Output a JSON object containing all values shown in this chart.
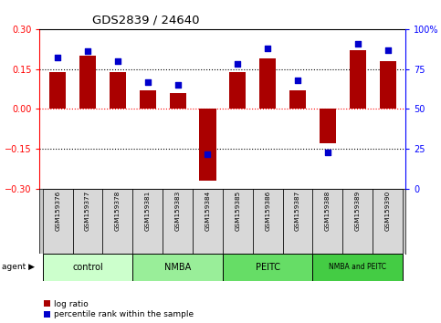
{
  "title": "GDS2839 / 24640",
  "samples": [
    "GSM159376",
    "GSM159377",
    "GSM159378",
    "GSM159381",
    "GSM159383",
    "GSM159384",
    "GSM159385",
    "GSM159386",
    "GSM159387",
    "GSM159388",
    "GSM159389",
    "GSM159390"
  ],
  "log_ratio": [
    0.14,
    0.2,
    0.14,
    0.07,
    0.06,
    -0.27,
    0.14,
    0.19,
    0.07,
    -0.13,
    0.22,
    0.18
  ],
  "percentile_rank": [
    82,
    86,
    80,
    67,
    65,
    22,
    78,
    88,
    68,
    23,
    91,
    87
  ],
  "groups": [
    {
      "label": "control",
      "start": 0,
      "end": 3,
      "color": "#ccffcc"
    },
    {
      "label": "NMBA",
      "start": 3,
      "end": 6,
      "color": "#99ee99"
    },
    {
      "label": "PEITC",
      "start": 6,
      "end": 9,
      "color": "#66dd66"
    },
    {
      "label": "NMBA and PEITC",
      "start": 9,
      "end": 12,
      "color": "#44cc44"
    }
  ],
  "bar_color": "#aa0000",
  "dot_color": "#0000cc",
  "ylim_left": [
    -0.3,
    0.3
  ],
  "ylim_right": [
    0,
    100
  ],
  "yticks_left": [
    -0.3,
    -0.15,
    0,
    0.15,
    0.3
  ],
  "yticks_right": [
    0,
    25,
    50,
    75,
    100
  ],
  "legend_entries": [
    "log ratio",
    "percentile rank within the sample"
  ],
  "group_colors": [
    "#ccffcc",
    "#99ee99",
    "#66dd66",
    "#44cc44"
  ]
}
